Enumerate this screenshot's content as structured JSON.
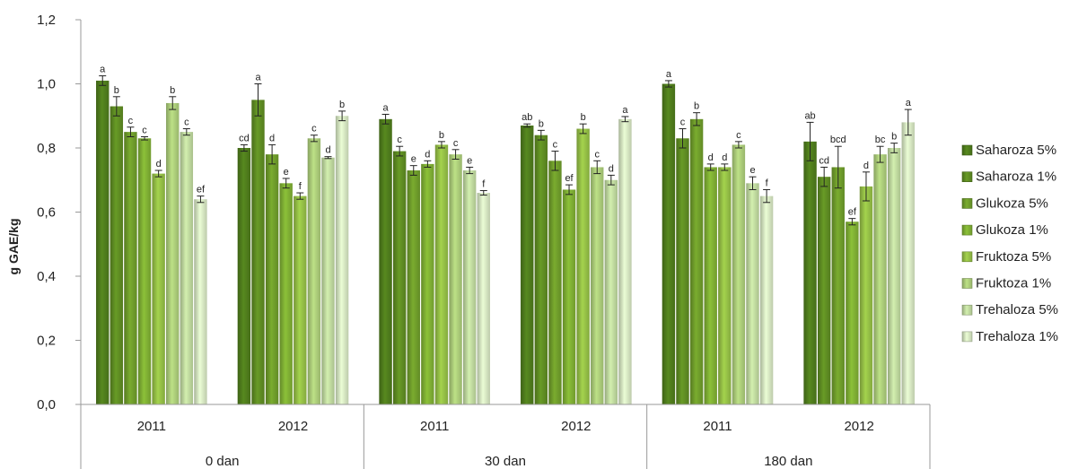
{
  "chart_data": {
    "type": "bar",
    "ylabel": "g GAE/kg",
    "xlabel": "",
    "ylim": [
      0,
      1.2
    ],
    "y_ticks": [
      "0,0",
      "0,2",
      "0,4",
      "0,6",
      "0,8",
      "1,0",
      "1,2"
    ],
    "grid": false,
    "legend_position": "right",
    "groups": [
      "0 dan",
      "30 dan",
      "180 dan"
    ],
    "years": [
      "2011",
      "2012"
    ],
    "categories": [
      "0 dan 2011",
      "0 dan 2012",
      "30 dan 2011",
      "30 dan 2012",
      "180 dan 2011",
      "180 dan 2012"
    ],
    "series": [
      {
        "name": "Saharoza 5%",
        "color": "#4e7a1c",
        "values": [
          1.01,
          0.8,
          0.89,
          0.87,
          1.0,
          0.82
        ],
        "errors": [
          0.015,
          0.01,
          0.015,
          0.005,
          0.01,
          0.06
        ],
        "labels": [
          "a",
          "cd",
          "a",
          "ab",
          "a",
          "ab"
        ]
      },
      {
        "name": "Saharoza 1%",
        "color": "#5d8a22",
        "values": [
          0.93,
          0.95,
          0.79,
          0.84,
          0.83,
          0.71
        ],
        "errors": [
          0.03,
          0.05,
          0.015,
          0.015,
          0.03,
          0.03
        ],
        "labels": [
          "b",
          "a",
          "c",
          "b",
          "c",
          "cd"
        ]
      },
      {
        "name": "Glukoza 5%",
        "color": "#6d9a2a",
        "values": [
          0.85,
          0.78,
          0.73,
          0.76,
          0.89,
          0.74
        ],
        "errors": [
          0.015,
          0.03,
          0.015,
          0.03,
          0.02,
          0.065
        ],
        "labels": [
          "c",
          "d",
          "e",
          "c",
          "b",
          "bcd"
        ]
      },
      {
        "name": "Glukoza 1%",
        "color": "#7dac33",
        "values": [
          0.83,
          0.69,
          0.75,
          0.67,
          0.74,
          0.57
        ],
        "errors": [
          0.005,
          0.015,
          0.01,
          0.015,
          0.01,
          0.01
        ],
        "labels": [
          "c",
          "e",
          "d",
          "ef",
          "d",
          "ef"
        ]
      },
      {
        "name": "Fruktoza 5%",
        "color": "#92bc45",
        "values": [
          0.72,
          0.65,
          0.81,
          0.86,
          0.74,
          0.68
        ],
        "errors": [
          0.01,
          0.01,
          0.01,
          0.015,
          0.01,
          0.045
        ],
        "labels": [
          "d",
          "f",
          "b",
          "b",
          "d",
          "d"
        ]
      },
      {
        "name": "Fruktoza 1%",
        "color": "#a9c978",
        "values": [
          0.94,
          0.83,
          0.78,
          0.74,
          0.81,
          0.78
        ],
        "errors": [
          0.02,
          0.01,
          0.015,
          0.02,
          0.01,
          0.025
        ],
        "labels": [
          "b",
          "c",
          "c",
          "c",
          "c",
          "bc"
        ]
      },
      {
        "name": "Trehaloza 5%",
        "color": "#bcd59c",
        "values": [
          0.85,
          0.77,
          0.73,
          0.7,
          0.69,
          0.8
        ],
        "errors": [
          0.01,
          0.003,
          0.01,
          0.015,
          0.02,
          0.015
        ],
        "labels": [
          "c",
          "d",
          "e",
          "d",
          "e",
          "b"
        ]
      },
      {
        "name": "Trehaloza 1%",
        "color": "#d2e2be",
        "values": [
          0.64,
          0.9,
          0.66,
          0.89,
          0.65,
          0.88
        ],
        "errors": [
          0.01,
          0.015,
          0.007,
          0.008,
          0.02,
          0.04
        ],
        "labels": [
          "ef",
          "b",
          "f",
          "a",
          "f",
          "a"
        ]
      }
    ]
  }
}
